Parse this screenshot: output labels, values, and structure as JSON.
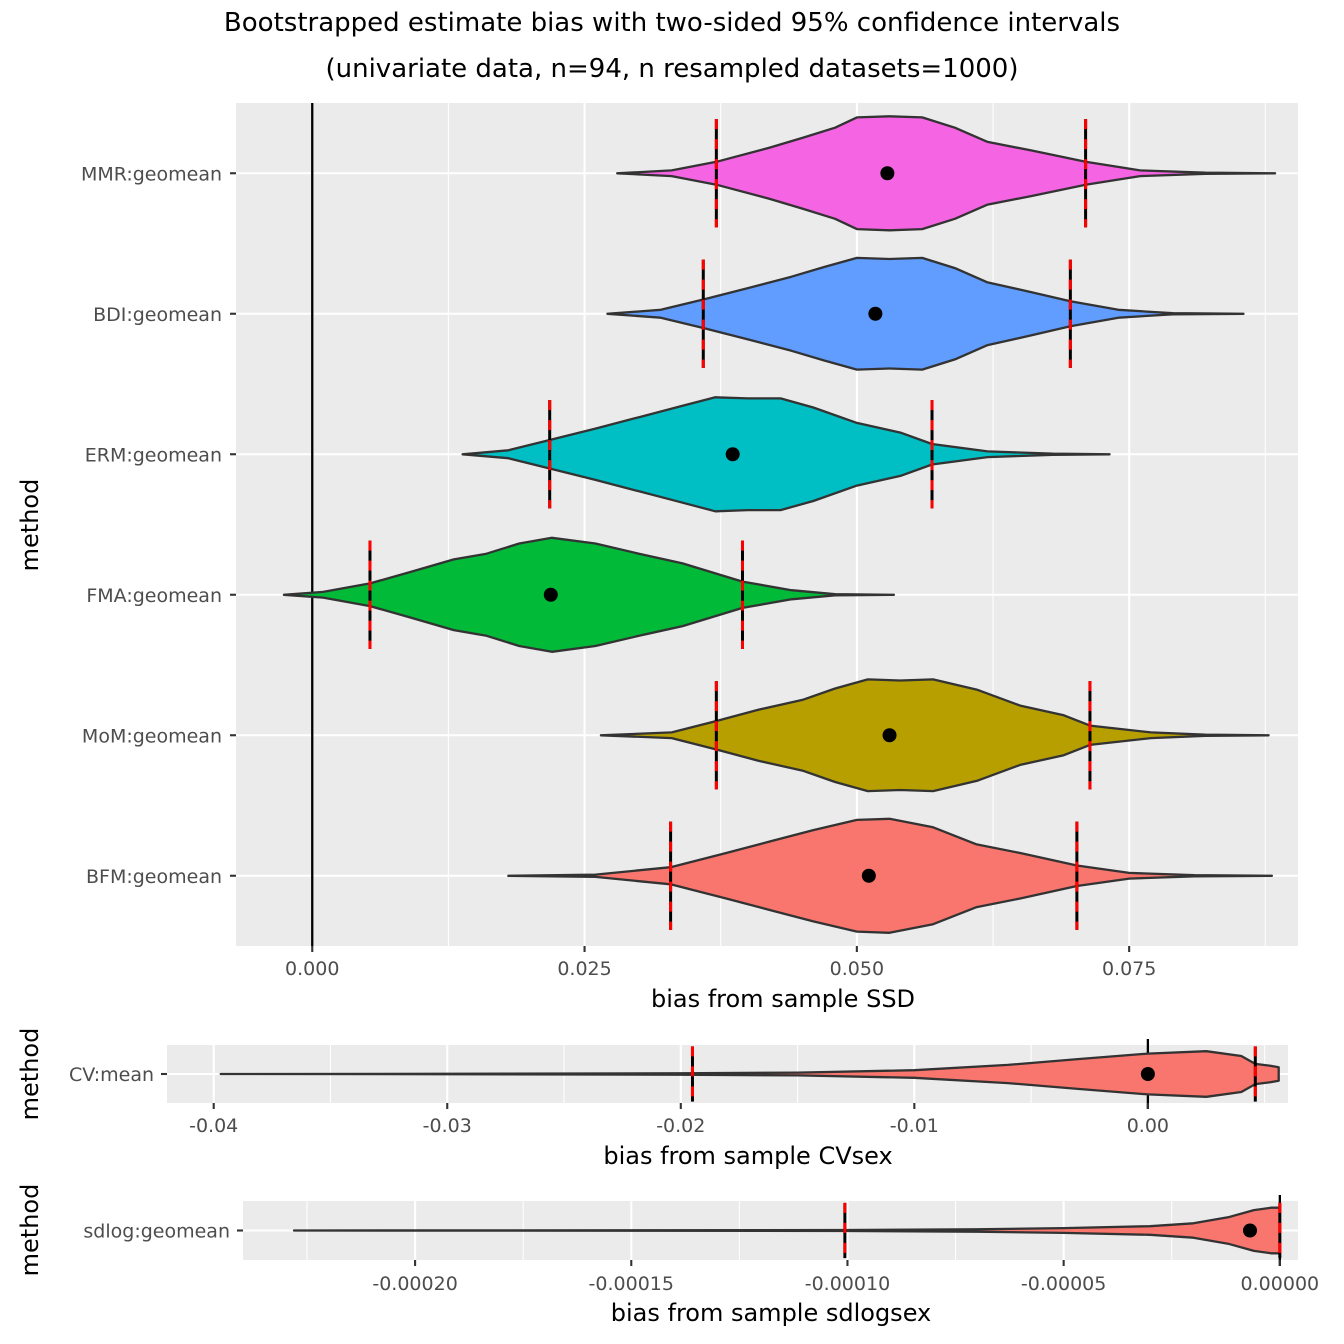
{
  "chart_data": [
    {
      "type": "violin",
      "title": "Bootstrapped estimate bias with two-sided 95% confidence intervals",
      "subtitle": "(univariate data, n=94, n resampled datasets=1000)",
      "xlabel": "bias from sample SSD",
      "ylabel": "method",
      "xlim": [
        -0.007,
        0.0905
      ],
      "x_ticks": [
        0.0,
        0.025,
        0.05,
        0.075
      ],
      "x_tick_labels": [
        "0.000",
        "0.025",
        "0.050",
        "0.075"
      ],
      "reference_line": 0,
      "grid": true,
      "categories": [
        "MMR:geomean",
        "BDI:geomean",
        "ERM:geomean",
        "FMA:geomean",
        "MoM:geomean",
        "BFM:geomean"
      ],
      "series": [
        {
          "name": "MMR:geomean",
          "color": "#F564E3",
          "min": 0.028,
          "max": 0.0884,
          "ci_low": 0.0371,
          "ci_high": 0.071,
          "mean": 0.0528,
          "density": [
            [
              0.028,
              0.0
            ],
            [
              0.033,
              0.05
            ],
            [
              0.0371,
              0.2
            ],
            [
              0.042,
              0.45
            ],
            [
              0.045,
              0.62
            ],
            [
              0.048,
              0.8
            ],
            [
              0.05,
              0.98
            ],
            [
              0.053,
              1.0
            ],
            [
              0.056,
              0.98
            ],
            [
              0.059,
              0.8
            ],
            [
              0.062,
              0.55
            ],
            [
              0.066,
              0.4
            ],
            [
              0.071,
              0.2
            ],
            [
              0.076,
              0.05
            ],
            [
              0.082,
              0.01
            ],
            [
              0.0884,
              0.0
            ]
          ]
        },
        {
          "name": "BDI:geomean",
          "color": "#619CFF",
          "min": 0.0271,
          "max": 0.0855,
          "ci_low": 0.0359,
          "ci_high": 0.0696,
          "mean": 0.0517,
          "density": [
            [
              0.0271,
              0.0
            ],
            [
              0.032,
              0.07
            ],
            [
              0.0359,
              0.25
            ],
            [
              0.04,
              0.45
            ],
            [
              0.044,
              0.65
            ],
            [
              0.047,
              0.82
            ],
            [
              0.05,
              0.98
            ],
            [
              0.053,
              0.96
            ],
            [
              0.056,
              0.98
            ],
            [
              0.059,
              0.8
            ],
            [
              0.062,
              0.55
            ],
            [
              0.066,
              0.38
            ],
            [
              0.0696,
              0.22
            ],
            [
              0.074,
              0.07
            ],
            [
              0.079,
              0.01
            ],
            [
              0.0855,
              0.0
            ]
          ]
        },
        {
          "name": "ERM:geomean",
          "color": "#00BFC4",
          "min": 0.0138,
          "max": 0.0732,
          "ci_low": 0.0218,
          "ci_high": 0.0569,
          "mean": 0.0386,
          "density": [
            [
              0.0138,
              0.0
            ],
            [
              0.018,
              0.07
            ],
            [
              0.0218,
              0.25
            ],
            [
              0.026,
              0.45
            ],
            [
              0.03,
              0.65
            ],
            [
              0.034,
              0.85
            ],
            [
              0.037,
              1.0
            ],
            [
              0.04,
              0.98
            ],
            [
              0.043,
              0.98
            ],
            [
              0.046,
              0.82
            ],
            [
              0.05,
              0.55
            ],
            [
              0.054,
              0.38
            ],
            [
              0.0569,
              0.18
            ],
            [
              0.062,
              0.05
            ],
            [
              0.068,
              0.01
            ],
            [
              0.0732,
              0.0
            ]
          ]
        },
        {
          "name": "FMA:geomean",
          "color": "#00BA38",
          "min": -0.0026,
          "max": 0.0534,
          "ci_low": 0.0053,
          "ci_high": 0.0395,
          "mean": 0.0219,
          "density": [
            [
              -0.0026,
              0.0
            ],
            [
              0.001,
              0.05
            ],
            [
              0.0053,
              0.2
            ],
            [
              0.009,
              0.4
            ],
            [
              0.013,
              0.62
            ],
            [
              0.016,
              0.72
            ],
            [
              0.019,
              0.9
            ],
            [
              0.022,
              1.0
            ],
            [
              0.026,
              0.9
            ],
            [
              0.03,
              0.72
            ],
            [
              0.034,
              0.55
            ],
            [
              0.0395,
              0.23
            ],
            [
              0.044,
              0.08
            ],
            [
              0.048,
              0.01
            ],
            [
              0.0534,
              0.0
            ]
          ]
        },
        {
          "name": "MoM:geomean",
          "color": "#B79F00",
          "min": 0.0265,
          "max": 0.0878,
          "ci_low": 0.0371,
          "ci_high": 0.0714,
          "mean": 0.053,
          "density": [
            [
              0.0265,
              0.0
            ],
            [
              0.033,
              0.05
            ],
            [
              0.0371,
              0.25
            ],
            [
              0.041,
              0.45
            ],
            [
              0.045,
              0.62
            ],
            [
              0.048,
              0.82
            ],
            [
              0.051,
              0.98
            ],
            [
              0.054,
              0.96
            ],
            [
              0.057,
              0.98
            ],
            [
              0.061,
              0.8
            ],
            [
              0.065,
              0.52
            ],
            [
              0.069,
              0.35
            ],
            [
              0.0714,
              0.17
            ],
            [
              0.077,
              0.05
            ],
            [
              0.082,
              0.01
            ],
            [
              0.0878,
              0.0
            ]
          ]
        },
        {
          "name": "BFM:geomean",
          "color": "#F8766D",
          "min": 0.018,
          "max": 0.0881,
          "ci_low": 0.0329,
          "ci_high": 0.0702,
          "mean": 0.0511,
          "density": [
            [
              0.018,
              0.0
            ],
            [
              0.026,
              0.02
            ],
            [
              0.0329,
              0.15
            ],
            [
              0.038,
              0.4
            ],
            [
              0.042,
              0.6
            ],
            [
              0.046,
              0.8
            ],
            [
              0.05,
              0.98
            ],
            [
              0.053,
              1.0
            ],
            [
              0.057,
              0.85
            ],
            [
              0.061,
              0.55
            ],
            [
              0.065,
              0.4
            ],
            [
              0.0702,
              0.18
            ],
            [
              0.075,
              0.05
            ],
            [
              0.081,
              0.01
            ],
            [
              0.0881,
              0.0
            ]
          ]
        }
      ]
    },
    {
      "type": "violin",
      "xlabel": "bias from sample CVsex",
      "ylabel": "method",
      "xlim": [
        -0.042,
        0.006
      ],
      "x_ticks": [
        -0.04,
        -0.03,
        -0.02,
        -0.01,
        0.0
      ],
      "x_tick_labels": [
        "-0.04",
        "-0.03",
        "-0.02",
        "-0.01",
        "0.00"
      ],
      "reference_line": 0,
      "grid": true,
      "categories": [
        "CV:mean"
      ],
      "series": [
        {
          "name": "CV:mean",
          "color": "#F8766D",
          "min": -0.0397,
          "max": 0.0056,
          "ci_low": -0.0195,
          "ci_high": 0.0046,
          "mean": 0.0,
          "density": [
            [
              -0.0397,
              0.0
            ],
            [
              -0.03,
              0.01
            ],
            [
              -0.02,
              0.03
            ],
            [
              -0.015,
              0.06
            ],
            [
              -0.01,
              0.16
            ],
            [
              -0.006,
              0.38
            ],
            [
              -0.003,
              0.62
            ],
            [
              0.0,
              0.85
            ],
            [
              0.0025,
              0.95
            ],
            [
              0.004,
              0.75
            ],
            [
              0.0046,
              0.42
            ],
            [
              0.0052,
              0.35
            ],
            [
              0.0056,
              0.28
            ]
          ]
        }
      ]
    },
    {
      "type": "violin",
      "xlabel": "bias from sample sdlogsex",
      "ylabel": "method",
      "xlim": [
        -0.0002398,
        4.2e-06
      ],
      "x_ticks": [
        -0.0002,
        -0.00015,
        -0.0001,
        -5e-05,
        0.0
      ],
      "x_tick_labels": [
        "-0.00020",
        "-0.00015",
        "-0.00010",
        "-0.00005",
        "0.00000"
      ],
      "reference_line": 0,
      "grid": true,
      "categories": [
        "sdlog:geomean"
      ],
      "series": [
        {
          "name": "sdlog:geomean",
          "color": "#F8766D",
          "min": -0.000228,
          "max": 0.0,
          "ci_low": -0.0001006,
          "ci_high": 0.0,
          "mean": -6.9e-06,
          "density": [
            [
              -0.000228,
              0.0
            ],
            [
              -0.00015,
              0.01
            ],
            [
              -0.0001,
              0.02
            ],
            [
              -7e-05,
              0.05
            ],
            [
              -5e-05,
              0.1
            ],
            [
              -3e-05,
              0.18
            ],
            [
              -2e-05,
              0.3
            ],
            [
              -1.2e-05,
              0.55
            ],
            [
              -6e-06,
              0.85
            ],
            [
              -2e-06,
              0.95
            ],
            [
              0.0,
              0.95
            ]
          ]
        }
      ]
    }
  ]
}
